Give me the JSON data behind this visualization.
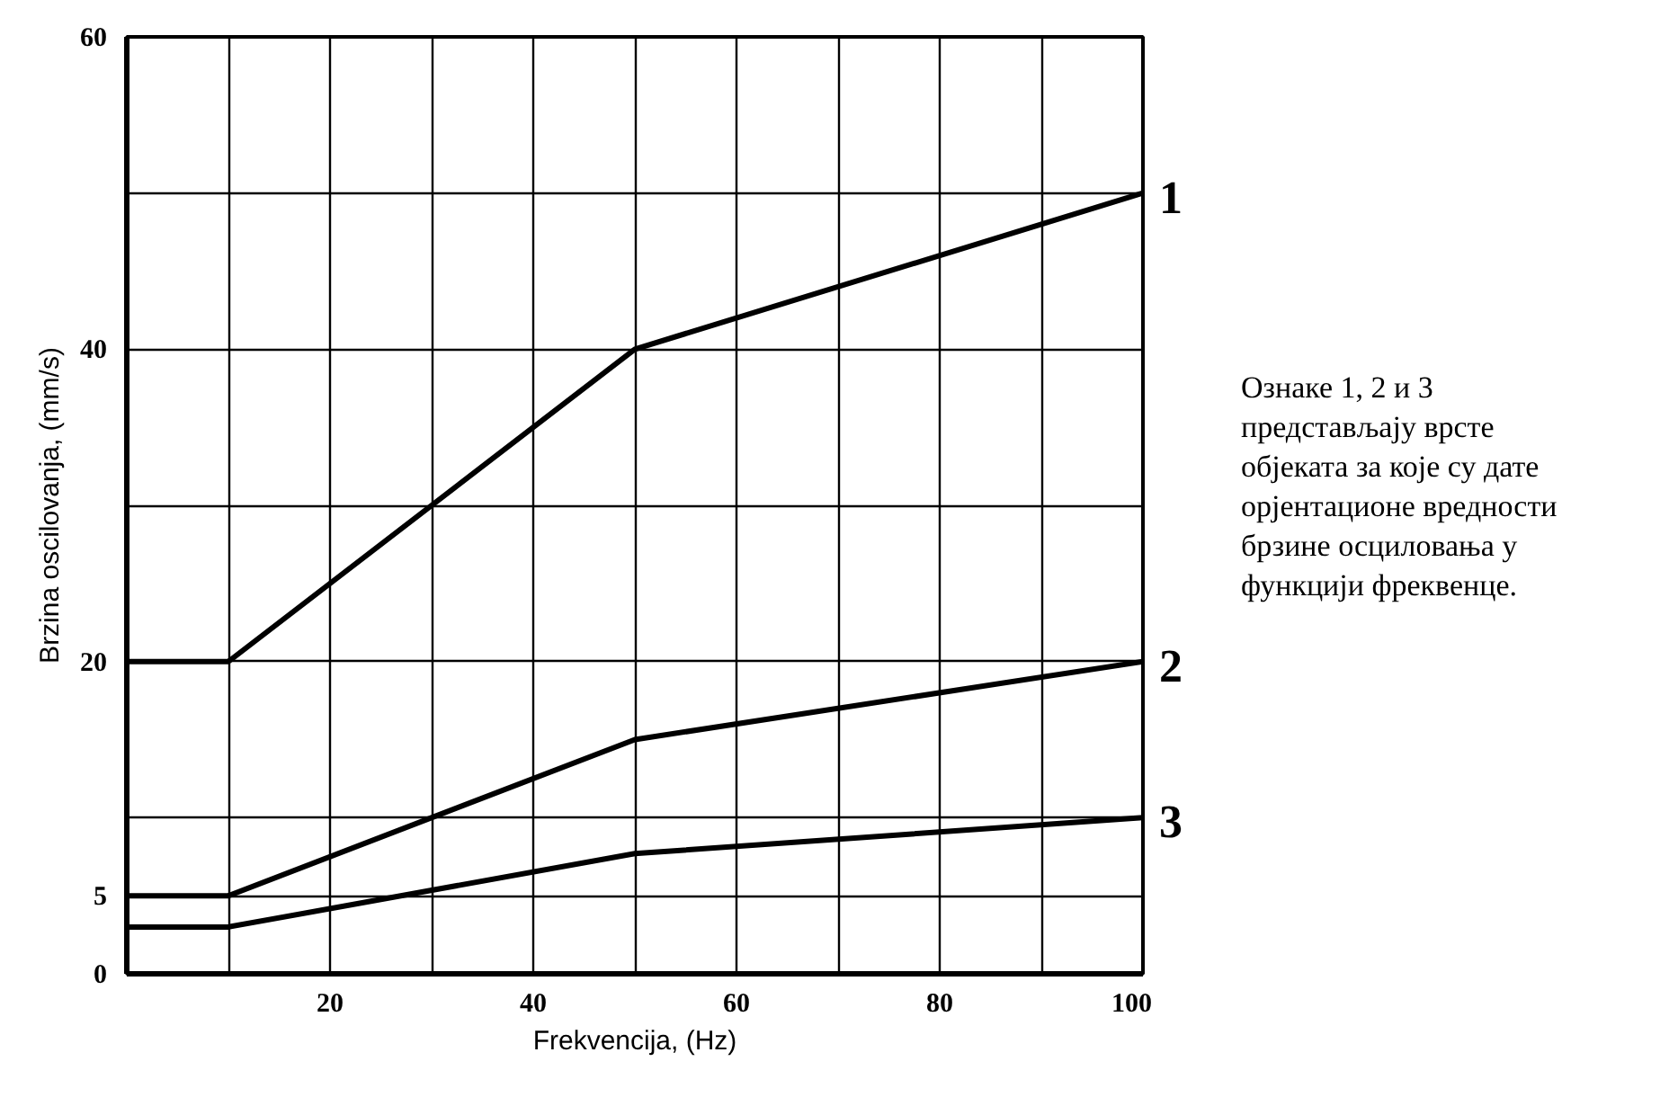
{
  "chart_data": {
    "type": "line",
    "xlabel": "Frekvencija, (Hz)",
    "ylabel": "Brzina oscilovanja, (mm/s)",
    "x": [
      0,
      10,
      50,
      100
    ],
    "series": [
      {
        "name": "1",
        "color": "#000000",
        "values": [
          20,
          20,
          40,
          50
        ]
      },
      {
        "name": "2",
        "color": "#000000",
        "values": [
          5,
          5,
          15,
          20
        ]
      },
      {
        "name": "3",
        "color": "#000000",
        "values": [
          3,
          3,
          7.7,
          10
        ]
      }
    ],
    "xlim": [
      0,
      100
    ],
    "ylim": [
      0,
      60
    ],
    "xticks": [
      {
        "value": 10,
        "label": null
      },
      20,
      {
        "value": 30,
        "label": null
      },
      40,
      {
        "value": 50,
        "label": null
      },
      60,
      {
        "value": 70,
        "label": null
      },
      80,
      {
        "value": 90,
        "label": null
      },
      100
    ],
    "yticks": [
      0,
      5,
      {
        "value": 10,
        "label": null
      },
      20,
      {
        "value": 30,
        "label": null
      },
      40,
      {
        "value": 50,
        "label": null
      },
      60
    ],
    "grid": true,
    "marker": "none",
    "line_style": "solid",
    "annotations": [
      "Ознаке 1, 2 и 3 представљају врсте објеката за које су дате орјентационе вредности брзине осциловања у функцији фреквенце."
    ]
  }
}
